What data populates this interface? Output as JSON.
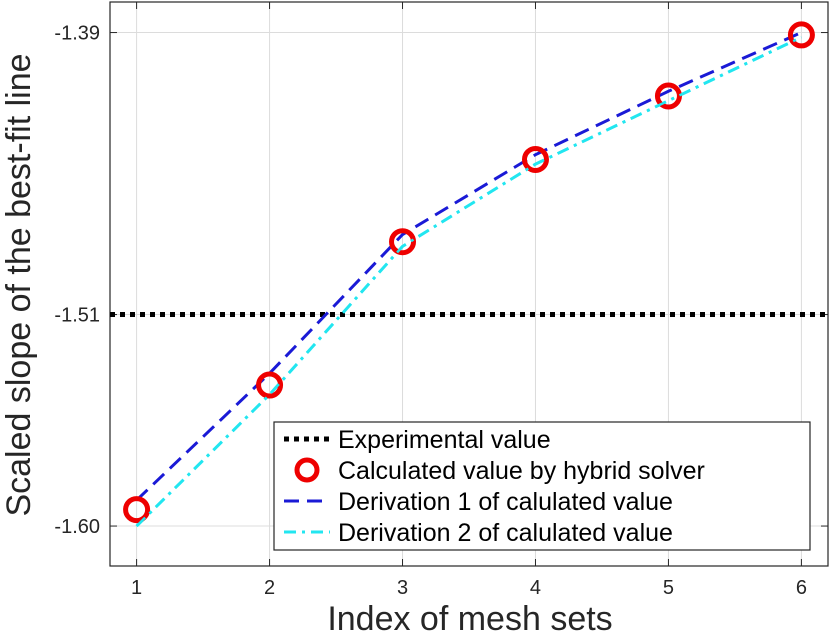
{
  "chart_data": {
    "type": "line",
    "xlabel": "Index of mesh sets",
    "ylabel": "Scaled slope of the best-fit line",
    "xlim": [
      0.8,
      6.2
    ],
    "ylim": [
      -1.617,
      -1.377
    ],
    "x_ticks": [
      1,
      2,
      3,
      4,
      5,
      6
    ],
    "x_tick_labels": [
      "1",
      "2",
      "3",
      "4",
      "5",
      "6"
    ],
    "y_ticks": [
      -1.6,
      -1.51,
      -1.39
    ],
    "y_tick_labels": [
      "-1.60",
      "-1.51",
      "-1.39"
    ],
    "grid": true,
    "legend_position": "bottom-right",
    "x": [
      1,
      2,
      3,
      4,
      5,
      6
    ],
    "series": [
      {
        "name": "Experimental value",
        "kind": "hline",
        "value": -1.51,
        "color": "#000000"
      },
      {
        "name": "Calculated value by hybrid solver",
        "kind": "markers",
        "values": [
          -1.593,
          -1.54,
          -1.479,
          -1.444,
          -1.417,
          -1.391
        ],
        "color": "#ee0000"
      },
      {
        "name": "Derivation 1 of calulated value",
        "kind": "dashed",
        "values": [
          -1.589,
          -1.535,
          -1.476,
          -1.442,
          -1.415,
          -1.39
        ],
        "color": "#1a1ad6"
      },
      {
        "name": "Derivation 2 of calulated value",
        "kind": "dashdot",
        "values": [
          -1.6,
          -1.544,
          -1.481,
          -1.446,
          -1.419,
          -1.392
        ],
        "color": "#22e6f0"
      }
    ]
  }
}
